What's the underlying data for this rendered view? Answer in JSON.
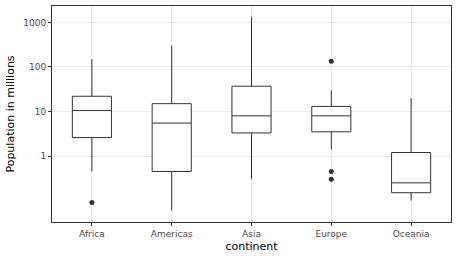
{
  "chart_data": {
    "type": "box",
    "x_label": "continent",
    "y_label": "Population in millions",
    "categories": [
      "Africa",
      "Americas",
      "Asia",
      "Europe",
      "Oceania"
    ],
    "lower": [
      0.45,
      0.06,
      0.3,
      1.4,
      0.1
    ],
    "q1": [
      2.6,
      0.45,
      3.3,
      3.5,
      0.15
    ],
    "median": [
      10.5,
      5.5,
      8,
      8,
      0.25
    ],
    "q3": [
      22,
      15,
      37,
      13,
      1.2
    ],
    "upper": [
      150,
      300,
      1350,
      30,
      20
    ],
    "outliers": [
      [
        0.09
      ],
      [],
      [],
      [
        135,
        0.45,
        0.3
      ],
      []
    ],
    "color": "#333333",
    "log": "y",
    "ylim": [
      0.033,
      2340
    ],
    "yticks": [
      1,
      10,
      100,
      1000
    ],
    "grid": true
  }
}
